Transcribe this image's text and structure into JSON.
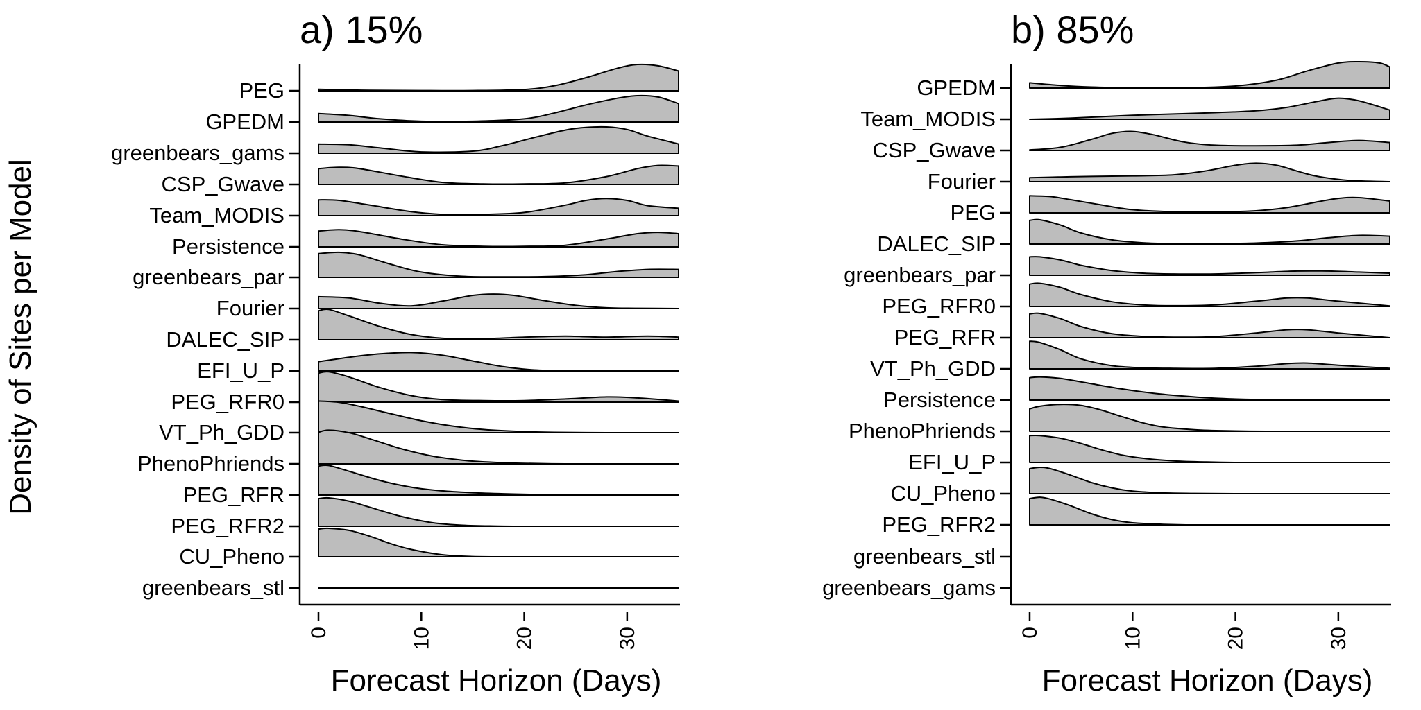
{
  "chart_data": {
    "type": "area",
    "ylabel": "Density of Sites per Model",
    "fill_color": "#bdbdbd",
    "line_color": "#000000",
    "panels": [
      {
        "title": "a) 15%",
        "xlabel": "Forecast Horizon (Days)",
        "xlim": [
          0,
          35
        ],
        "xticks": [
          "0",
          "10",
          "20",
          "30"
        ],
        "models": [
          {
            "name": "PEG",
            "x": [
              0,
              2,
              5,
              10,
              15,
              20,
              23,
              26,
              29,
              31,
              33,
              35
            ],
            "density": [
              0.06,
              0.04,
              0.02,
              0.01,
              0.01,
              0.05,
              0.2,
              0.5,
              0.85,
              1.0,
              0.95,
              0.75
            ]
          },
          {
            "name": "GPEDM",
            "x": [
              0,
              3,
              6,
              10,
              15,
              20,
              23,
              26,
              29,
              31,
              33,
              35
            ],
            "density": [
              0.32,
              0.25,
              0.12,
              0.03,
              0.03,
              0.12,
              0.35,
              0.65,
              0.9,
              1.0,
              0.95,
              0.7
            ]
          },
          {
            "name": "greenbears_gams",
            "x": [
              0,
              3,
              6,
              10,
              15,
              18,
              21,
              24,
              26,
              28,
              30,
              32,
              35
            ],
            "density": [
              0.35,
              0.32,
              0.2,
              0.05,
              0.08,
              0.3,
              0.6,
              0.88,
              0.98,
              1.0,
              0.9,
              0.65,
              0.35
            ]
          },
          {
            "name": "CSP_Gwave",
            "x": [
              0,
              2,
              4,
              8,
              12,
              16,
              20,
              24,
              28,
              31,
              33,
              35
            ],
            "density": [
              0.6,
              0.65,
              0.6,
              0.32,
              0.08,
              0.02,
              0.02,
              0.06,
              0.3,
              0.6,
              0.72,
              0.7
            ]
          },
          {
            "name": "Team_MODIS",
            "x": [
              0,
              2,
              5,
              9,
              12,
              16,
              20,
              24,
              26,
              28,
              30,
              32,
              35
            ],
            "density": [
              0.6,
              0.58,
              0.4,
              0.15,
              0.05,
              0.05,
              0.12,
              0.4,
              0.58,
              0.65,
              0.58,
              0.38,
              0.28
            ]
          },
          {
            "name": "Persistence",
            "x": [
              0,
              2,
              4,
              8,
              12,
              16,
              20,
              24,
              28,
              31,
              33,
              35
            ],
            "density": [
              0.6,
              0.65,
              0.58,
              0.3,
              0.08,
              0.02,
              0.02,
              0.06,
              0.3,
              0.5,
              0.55,
              0.5
            ]
          },
          {
            "name": "greenbears_par",
            "x": [
              0,
              2,
              4,
              7,
              10,
              14,
              18,
              22,
              26,
              29,
              32,
              35
            ],
            "density": [
              0.9,
              0.95,
              0.85,
              0.5,
              0.2,
              0.04,
              0.02,
              0.03,
              0.1,
              0.22,
              0.3,
              0.3
            ]
          },
          {
            "name": "Fourier",
            "x": [
              0,
              3,
              6,
              9,
              12,
              15,
              17,
              19,
              22,
              25,
              28,
              31,
              35
            ],
            "density": [
              0.45,
              0.4,
              0.2,
              0.1,
              0.28,
              0.5,
              0.55,
              0.5,
              0.3,
              0.12,
              0.03,
              0.01,
              0.0
            ]
          },
          {
            "name": "DALEC_SIP",
            "x": [
              0,
              1,
              3,
              6,
              9,
              12,
              16,
              20,
              24,
              28,
              32,
              35
            ],
            "density": [
              1.1,
              1.15,
              0.9,
              0.5,
              0.2,
              0.06,
              0.04,
              0.1,
              0.14,
              0.1,
              0.14,
              0.1
            ]
          },
          {
            "name": "EFI_U_P",
            "x": [
              0,
              3,
              6,
              9,
              12,
              15,
              18,
              21,
              24,
              28,
              35
            ],
            "density": [
              0.35,
              0.52,
              0.65,
              0.7,
              0.6,
              0.38,
              0.16,
              0.04,
              0.01,
              0.0,
              0.0
            ]
          },
          {
            "name": "PEG_RFR0",
            "x": [
              0,
              1,
              3,
              6,
              9,
              12,
              16,
              20,
              24,
              28,
              31,
              35
            ],
            "density": [
              1.1,
              1.15,
              0.95,
              0.55,
              0.25,
              0.1,
              0.06,
              0.06,
              0.12,
              0.2,
              0.16,
              0.04
            ]
          },
          {
            "name": "VT_Ph_GDD",
            "x": [
              0,
              2,
              4,
              7,
              10,
              13,
              16,
              20,
              24,
              28,
              32,
              35
            ],
            "density": [
              1.2,
              1.15,
              1.0,
              0.72,
              0.45,
              0.25,
              0.12,
              0.04,
              0.01,
              0.0,
              0.0,
              0.0
            ]
          },
          {
            "name": "PhenoPhriends",
            "x": [
              0,
              1,
              3,
              5,
              8,
              11,
              14,
              17,
              20,
              24,
              28,
              35
            ],
            "density": [
              1.2,
              1.28,
              1.18,
              0.95,
              0.58,
              0.3,
              0.14,
              0.06,
              0.02,
              0.0,
              0.0,
              0.0
            ]
          },
          {
            "name": "PEG_RFR",
            "x": [
              0,
              1,
              3,
              6,
              9,
              12,
              15,
              18,
              21,
              25,
              30,
              35
            ],
            "density": [
              1.1,
              1.12,
              0.9,
              0.55,
              0.3,
              0.16,
              0.09,
              0.05,
              0.02,
              0.0,
              0.0,
              0.0
            ]
          },
          {
            "name": "PEG_RFR2",
            "x": [
              0,
              1,
              3,
              5,
              8,
              11,
              14,
              17,
              20,
              24,
              28,
              35
            ],
            "density": [
              1.05,
              1.08,
              0.95,
              0.72,
              0.38,
              0.14,
              0.04,
              0.01,
              0.0,
              0.0,
              0.0,
              0.0
            ]
          },
          {
            "name": "CU_Pheno",
            "x": [
              0,
              1,
              3,
              5,
              7,
              9,
              12,
              15,
              18,
              22,
              26,
              35
            ],
            "density": [
              1.05,
              1.08,
              1.0,
              0.78,
              0.5,
              0.28,
              0.08,
              0.01,
              0.0,
              0.0,
              0.0,
              0.0
            ]
          },
          {
            "name": "greenbears_stl",
            "x": [
              0,
              1,
              3,
              5,
              7,
              9,
              12,
              15,
              18,
              22,
              26,
              35
            ],
            "density": [
              0.0,
              0.0,
              0.0,
              0.0,
              0.0,
              0.0,
              0.0,
              0.0,
              0.0,
              0.0,
              0.0,
              0.0
            ]
          }
        ]
      },
      {
        "title": "b) 85%",
        "xlabel": "Forecast Horizon (Days)",
        "xlim": [
          0,
          35
        ],
        "xticks": [
          "0",
          "10",
          "20",
          "30"
        ],
        "models": [
          {
            "name": "GPEDM",
            "x": [
              0,
              3,
              6,
              10,
              15,
              20,
              24,
              27,
              30,
              32,
              34,
              35
            ],
            "density": [
              0.2,
              0.1,
              0.04,
              0.01,
              0.01,
              0.08,
              0.3,
              0.65,
              0.95,
              1.0,
              0.95,
              0.8
            ]
          },
          {
            "name": "Team_MODIS",
            "x": [
              0,
              3,
              6,
              10,
              14,
              18,
              22,
              25,
              28,
              30,
              32,
              35
            ],
            "density": [
              0.0,
              0.03,
              0.08,
              0.15,
              0.2,
              0.25,
              0.32,
              0.45,
              0.68,
              0.8,
              0.7,
              0.35
            ]
          },
          {
            "name": "CSP_Gwave",
            "x": [
              0,
              3,
              6,
              8,
              10,
              12,
              15,
              18,
              22,
              26,
              29,
              32,
              35
            ],
            "density": [
              0.02,
              0.12,
              0.42,
              0.65,
              0.72,
              0.6,
              0.32,
              0.2,
              0.18,
              0.2,
              0.3,
              0.38,
              0.3
            ]
          },
          {
            "name": "Fourier",
            "x": [
              0,
              3,
              6,
              10,
              14,
              17,
              20,
              22,
              24,
              26,
              28,
              31,
              35
            ],
            "density": [
              0.15,
              0.18,
              0.2,
              0.22,
              0.26,
              0.4,
              0.62,
              0.7,
              0.62,
              0.4,
              0.2,
              0.05,
              0.0
            ]
          },
          {
            "name": "PEG",
            "x": [
              0,
              2,
              4,
              7,
              10,
              14,
              18,
              22,
              25,
              28,
              30,
              32,
              35
            ],
            "density": [
              0.65,
              0.62,
              0.5,
              0.3,
              0.12,
              0.04,
              0.03,
              0.08,
              0.2,
              0.42,
              0.55,
              0.58,
              0.45
            ]
          },
          {
            "name": "DALEC_SIP",
            "x": [
              0,
              1,
              3,
              5,
              8,
              11,
              14,
              18,
              22,
              26,
              29,
              32,
              35
            ],
            "density": [
              0.9,
              0.92,
              0.72,
              0.42,
              0.16,
              0.05,
              0.02,
              0.02,
              0.04,
              0.12,
              0.24,
              0.33,
              0.3
            ]
          },
          {
            "name": "greenbears_par",
            "x": [
              0,
              1,
              3,
              5,
              8,
              11,
              14,
              18,
              22,
              26,
              29,
              32,
              35
            ],
            "density": [
              0.7,
              0.7,
              0.58,
              0.38,
              0.18,
              0.08,
              0.05,
              0.05,
              0.1,
              0.16,
              0.16,
              0.12,
              0.08
            ]
          },
          {
            "name": "PEG_RFR0",
            "x": [
              0,
              1,
              3,
              5,
              8,
              11,
              14,
              18,
              22,
              25,
              27,
              30,
              35
            ],
            "density": [
              0.85,
              0.88,
              0.72,
              0.45,
              0.18,
              0.06,
              0.03,
              0.06,
              0.2,
              0.32,
              0.32,
              0.2,
              0.02
            ]
          },
          {
            "name": "PEG_RFR",
            "x": [
              0,
              1,
              3,
              5,
              8,
              11,
              14,
              18,
              22,
              25,
              27,
              30,
              35
            ],
            "density": [
              0.9,
              0.92,
              0.72,
              0.42,
              0.15,
              0.05,
              0.02,
              0.04,
              0.18,
              0.3,
              0.3,
              0.18,
              0.0
            ]
          },
          {
            "name": "VT_Ph_GDD",
            "x": [
              0,
              1,
              3,
              5,
              8,
              11,
              14,
              18,
              22,
              25,
              27,
              30,
              35
            ],
            "density": [
              1.05,
              1.0,
              0.72,
              0.38,
              0.12,
              0.04,
              0.02,
              0.02,
              0.1,
              0.2,
              0.22,
              0.14,
              0.02
            ]
          },
          {
            "name": "Persistence",
            "x": [
              0,
              1,
              3,
              6,
              9,
              12,
              15,
              18,
              21,
              24,
              28,
              35
            ],
            "density": [
              0.85,
              0.88,
              0.82,
              0.62,
              0.42,
              0.26,
              0.15,
              0.07,
              0.03,
              0.01,
              0.0,
              0.0
            ]
          },
          {
            "name": "PhenoPhriends",
            "x": [
              0,
              1,
              3,
              5,
              7,
              9,
              11,
              13,
              16,
              19,
              23,
              28,
              35
            ],
            "density": [
              0.85,
              0.95,
              1.02,
              0.98,
              0.8,
              0.55,
              0.32,
              0.16,
              0.06,
              0.02,
              0.0,
              0.0,
              0.0
            ]
          },
          {
            "name": "EFI_U_P",
            "x": [
              0,
              1,
              3,
              5,
              7,
              9,
              11,
              14,
              17,
              20,
              25,
              35
            ],
            "density": [
              1.02,
              1.02,
              0.92,
              0.72,
              0.48,
              0.28,
              0.16,
              0.06,
              0.02,
              0.0,
              0.0,
              0.0
            ]
          },
          {
            "name": "CU_Pheno",
            "x": [
              0,
              1,
              2,
              4,
              6,
              8,
              10,
              13,
              16,
              20,
              25,
              35
            ],
            "density": [
              0.95,
              1.0,
              0.95,
              0.7,
              0.42,
              0.22,
              0.1,
              0.03,
              0.01,
              0.0,
              0.0,
              0.0
            ]
          },
          {
            "name": "PEG_RFR2",
            "x": [
              0,
              1,
              2,
              4,
              6,
              8,
              10,
              13,
              16,
              20,
              25,
              35
            ],
            "density": [
              1.0,
              1.05,
              0.98,
              0.72,
              0.42,
              0.2,
              0.08,
              0.02,
              0.0,
              0.0,
              0.0,
              0.0
            ]
          },
          {
            "name": "greenbears_stl",
            "x": [],
            "density": []
          },
          {
            "name": "greenbears_gams",
            "x": [],
            "density": []
          }
        ]
      }
    ]
  }
}
